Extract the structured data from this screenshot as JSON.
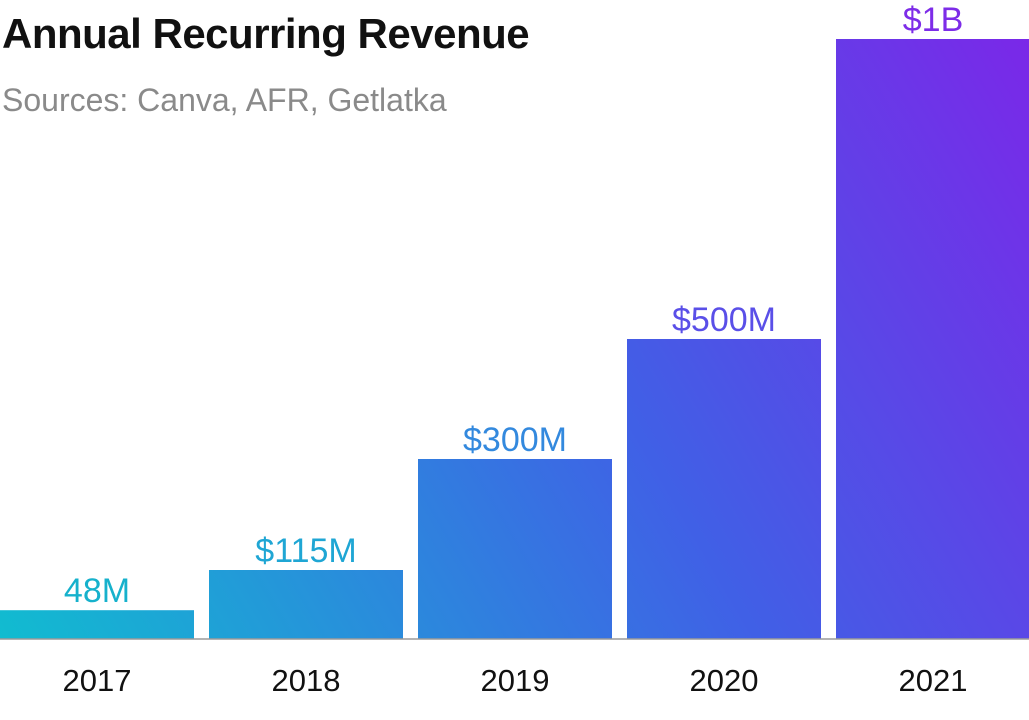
{
  "chart_data": {
    "type": "bar",
    "title": "Annual Recurring Revenue",
    "subtitle": "Sources: Canva, AFR, Getlatka",
    "categories": [
      "2017",
      "2018",
      "2019",
      "2020",
      "2021"
    ],
    "values": [
      48,
      115,
      300,
      500,
      1000
    ],
    "value_labels": [
      "48M",
      "$115M",
      "$300M",
      "$500M",
      "$1B"
    ],
    "ylim": [
      0,
      1000
    ],
    "grid": false,
    "legend": "none",
    "colors": {
      "gradient_start": "#11bcd0",
      "gradient_mid": "#4060e6",
      "gradient_end": "#7a28e8",
      "label_colors": [
        "#16b1cc",
        "#1fa6d4",
        "#3389de",
        "#5a4fe8",
        "#7d2ce8"
      ],
      "axis_line": "#9a9a9a",
      "tick_text": "#111111"
    }
  }
}
